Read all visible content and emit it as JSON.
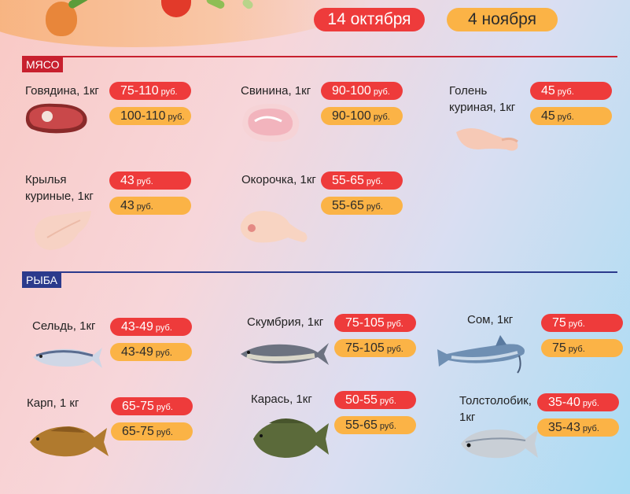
{
  "header": {
    "date_old": "14 октября",
    "date_new": "4 ноября"
  },
  "colors": {
    "red": "#ee3b3b",
    "orange": "#fbb346",
    "meat_section": "#c8202e",
    "fish_section": "#2b3a8c"
  },
  "sections": {
    "meat": {
      "title": "МЯСО",
      "items": [
        {
          "name": "Говядина, 1кг",
          "price_old": "75-110",
          "price_new": "100-110",
          "unit": "руб.",
          "icon": "beef-steak-icon"
        },
        {
          "name": "Свинина, 1кг",
          "price_old": "90-100",
          "price_new": "90-100",
          "unit": "руб.",
          "icon": "pork-icon"
        },
        {
          "name": "Голень куриная, 1кг",
          "name_line1": "Голень",
          "name_line2": "куриная, 1кг",
          "price_old": "45",
          "price_new": "45",
          "unit": "руб.",
          "icon": "chicken-drumstick-icon"
        },
        {
          "name": "Крылья куриные, 1кг",
          "name_line1": "Крылья",
          "name_line2": "куриные, 1кг",
          "price_old": "43",
          "price_new": "43",
          "unit": "руб.",
          "icon": "chicken-wing-icon"
        },
        {
          "name": "Окорочка, 1кг",
          "price_old": "55-65",
          "price_new": "55-65",
          "unit": "руб.",
          "icon": "chicken-leg-icon"
        }
      ]
    },
    "fish": {
      "title": "РЫБА",
      "items": [
        {
          "name": "Сельдь, 1кг",
          "price_old": "43-49",
          "price_new": "43-49",
          "unit": "руб.",
          "icon": "herring-icon"
        },
        {
          "name": "Скумбрия, 1кг",
          "price_old": "75-105",
          "price_new": "75-105",
          "unit": "руб.",
          "icon": "mackerel-icon"
        },
        {
          "name": "Сом, 1кг",
          "price_old": "75",
          "price_new": "75",
          "unit": "руб.",
          "icon": "catfish-icon"
        },
        {
          "name": "Карп, 1 кг",
          "price_old": "65-75",
          "price_new": "65-75",
          "unit": "руб.",
          "icon": "carp-icon"
        },
        {
          "name": "Карась, 1кг",
          "price_old": "50-55",
          "price_new": "55-65",
          "unit": "руб.",
          "icon": "crucian-icon"
        },
        {
          "name": "Толстолобик, 1кг",
          "name_line1": "Толстолобик,",
          "name_line2": "1кг",
          "price_old": "35-40",
          "price_new": "35-43",
          "unit": "руб.",
          "icon": "silver-carp-icon"
        }
      ]
    }
  }
}
